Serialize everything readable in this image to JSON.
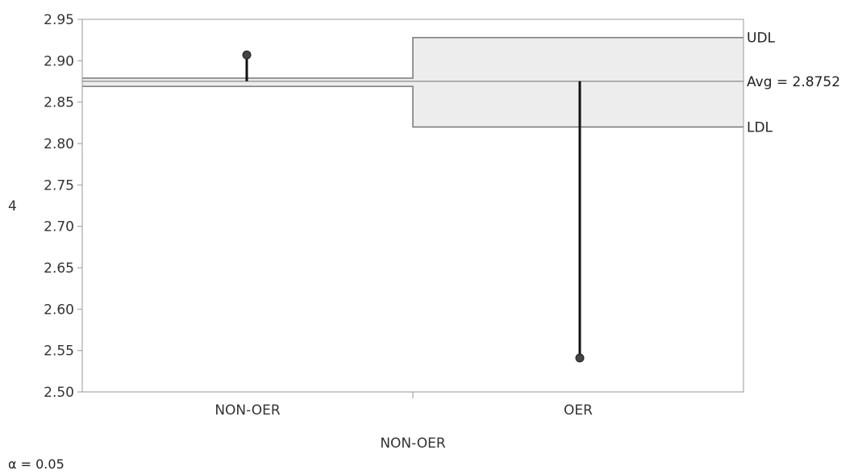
{
  "chart_data": {
    "type": "analysis-of-means",
    "xlabel": "NON-OER",
    "ylabel": "4",
    "categories": [
      "NON-OER",
      "OER"
    ],
    "values": [
      2.907,
      2.541
    ],
    "ylim": [
      2.5,
      2.95
    ],
    "yticks": [
      2.5,
      2.55,
      2.6,
      2.65,
      2.7,
      2.75,
      2.8,
      2.85,
      2.9,
      2.95
    ],
    "ytick_labels": [
      "2.50",
      "2.55",
      "2.60",
      "2.65",
      "2.70",
      "2.75",
      "2.80",
      "2.85",
      "2.90",
      "2.95"
    ],
    "average": 2.8752,
    "average_label": "Avg = 2.8752",
    "decision_limits": [
      {
        "category": "NON-OER",
        "udl": 2.879,
        "ldl": 2.869
      },
      {
        "category": "OER",
        "udl": 2.928,
        "ldl": 2.82
      }
    ],
    "udl_label": "UDL",
    "ldl_label": "LDL",
    "alpha_text": "α = 0.05",
    "band_color": "#ededed",
    "line_color": "#777777",
    "marker_color": "#111111"
  }
}
